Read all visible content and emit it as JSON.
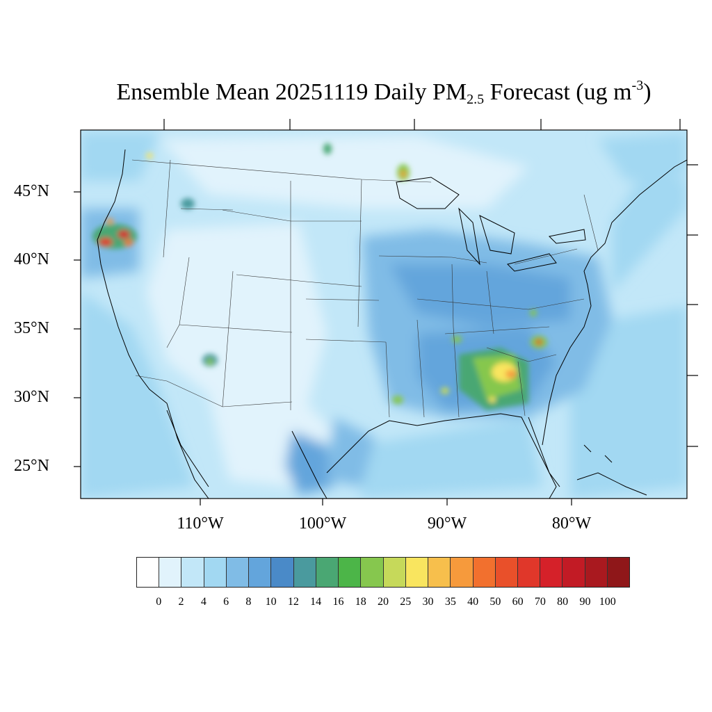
{
  "title": {
    "prefix": "Ensemble Mean 20251119 Daily PM",
    "subscript": "2.5",
    "middle": " Forecast (ug m",
    "superscript": "-3",
    "suffix": ")"
  },
  "lat_labels": [
    "45°N",
    "40°N",
    "35°N",
    "30°N",
    "25°N"
  ],
  "lon_labels": [
    "110°W",
    "100°W",
    "90°W",
    "80°W"
  ],
  "colorbar": {
    "colors": [
      "#ffffff",
      "#e1f3fc",
      "#c2e7f8",
      "#a2d8f2",
      "#80bce6",
      "#63a5dc",
      "#4a8ac8",
      "#4a9a9e",
      "#4aa773",
      "#4cb548",
      "#86c74e",
      "#c6d95a",
      "#f9e55f",
      "#f7bf4c",
      "#f69a3c",
      "#f2702e",
      "#e9502a",
      "#e0372a",
      "#d52129",
      "#c21b25",
      "#a9191f",
      "#8f1719"
    ],
    "labels": [
      "0",
      "2",
      "4",
      "6",
      "8",
      "10",
      "12",
      "14",
      "16",
      "18",
      "20",
      "25",
      "30",
      "35",
      "40",
      "50",
      "60",
      "70",
      "80",
      "90",
      "100"
    ]
  }
}
